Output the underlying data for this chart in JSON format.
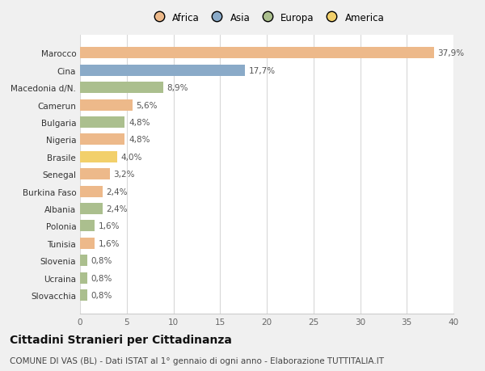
{
  "categories": [
    "Slovacchia",
    "Ucraina",
    "Slovenia",
    "Tunisia",
    "Polonia",
    "Albania",
    "Burkina Faso",
    "Senegal",
    "Brasile",
    "Nigeria",
    "Bulgaria",
    "Camerun",
    "Macedonia d/N.",
    "Cina",
    "Marocco"
  ],
  "values": [
    0.8,
    0.8,
    0.8,
    1.6,
    1.6,
    2.4,
    2.4,
    3.2,
    4.0,
    4.8,
    4.8,
    5.6,
    8.9,
    17.7,
    37.9
  ],
  "labels": [
    "0,8%",
    "0,8%",
    "0,8%",
    "1,6%",
    "1,6%",
    "2,4%",
    "2,4%",
    "3,2%",
    "4,0%",
    "4,8%",
    "4,8%",
    "5,6%",
    "8,9%",
    "17,7%",
    "37,9%"
  ],
  "continent": [
    "Europa",
    "Europa",
    "Europa",
    "Africa",
    "Europa",
    "Europa",
    "Africa",
    "Africa",
    "America",
    "Africa",
    "Europa",
    "Africa",
    "Europa",
    "Asia",
    "Africa"
  ],
  "colors": {
    "Africa": "#EDB98A",
    "Asia": "#8AAAC8",
    "Europa": "#ABBF8E",
    "America": "#F2D06B"
  },
  "legend_order": [
    "Africa",
    "Asia",
    "Europa",
    "America"
  ],
  "legend_colors": [
    "#EDB98A",
    "#8AAAC8",
    "#ABBF8E",
    "#F2D06B"
  ],
  "xlim": [
    0,
    40
  ],
  "xticks": [
    0,
    5,
    10,
    15,
    20,
    25,
    30,
    35,
    40
  ],
  "title": "Cittadini Stranieri per Cittadinanza",
  "subtitle": "COMUNE DI VAS (BL) - Dati ISTAT al 1° gennaio di ogni anno - Elaborazione TUTTITALIA.IT",
  "bg_color": "#f0f0f0",
  "plot_bg_color": "#ffffff",
  "grid_color": "#d8d8d8",
  "bar_height": 0.65,
  "title_fontsize": 10,
  "subtitle_fontsize": 7.5,
  "label_fontsize": 7.5,
  "tick_fontsize": 7.5,
  "legend_fontsize": 8.5
}
